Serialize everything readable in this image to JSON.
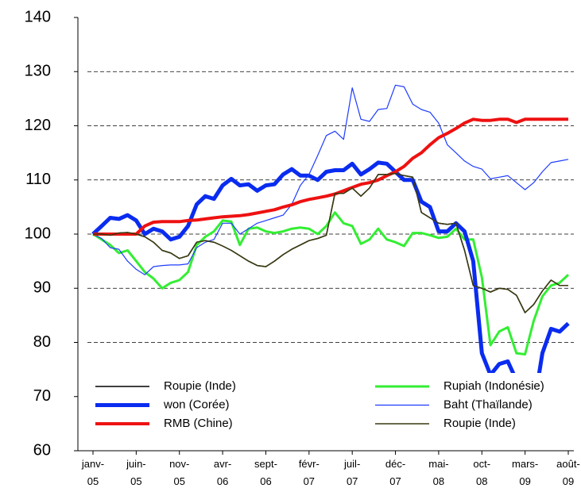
{
  "chart_data": {
    "type": "line",
    "categories": [
      "janv-05",
      null,
      null,
      null,
      null,
      "juin-05",
      null,
      null,
      null,
      null,
      "nov-05",
      null,
      null,
      null,
      null,
      "avr-06",
      null,
      null,
      null,
      null,
      "sept-06",
      null,
      null,
      null,
      null,
      "févr-07",
      null,
      null,
      null,
      null,
      "juil-07",
      null,
      null,
      null,
      null,
      "déc-07",
      null,
      null,
      null,
      null,
      "mai-08",
      null,
      null,
      null,
      null,
      "oct-08",
      null,
      null,
      null,
      null,
      "mars-09",
      null,
      null,
      null,
      null,
      "août-09"
    ],
    "ylim": [
      60,
      140
    ],
    "yticks": [
      60,
      70,
      80,
      90,
      100,
      110,
      120,
      130,
      140
    ],
    "grid": true,
    "series": [
      {
        "name": "Roupie (Inde)",
        "color": "#000000",
        "line_width": 1.5,
        "values": [
          100,
          100,
          99.8,
          100.2,
          100.3,
          100,
          99.5,
          98.5,
          97,
          96.5,
          95.5,
          96,
          98.5,
          98.8,
          98.5,
          97.8,
          97,
          96,
          95,
          94.2,
          94,
          95,
          96.2,
          97.2,
          98,
          98.8,
          99.2,
          99.8,
          107.5,
          107.5,
          108.5,
          107,
          108.5,
          111,
          111,
          111.2,
          110.8,
          110.5,
          104,
          103,
          102,
          101.8,
          102,
          97,
          90.5,
          90,
          89.3,
          90,
          89.8,
          88.7,
          85.5,
          87,
          89.5,
          91.5,
          90.5,
          90.5
        ]
      },
      {
        "name": "Rupiah (Indonésie)",
        "color": "#33ee33",
        "line_width": 3,
        "values": [
          100,
          99,
          98,
          96.5,
          97,
          95,
          93,
          91.8,
          90,
          91,
          91.5,
          93,
          98,
          99.5,
          100.5,
          102.5,
          102.3,
          98,
          101,
          101.2,
          100.5,
          100.2,
          100.5,
          101,
          101.2,
          101,
          100,
          101.5,
          104,
          102,
          101.5,
          98.2,
          99,
          101,
          99,
          98.5,
          97.8,
          100.2,
          100.2,
          99.8,
          99.3,
          99.5,
          101,
          99,
          99,
          92,
          79.5,
          82,
          82.8,
          78,
          77.8,
          84,
          88.5,
          90.5,
          91,
          92.5
        ]
      },
      {
        "name": "won (Corée)",
        "color": "#0a2cf0",
        "line_width": 5,
        "values": [
          100,
          101.5,
          103,
          102.8,
          103.5,
          102.5,
          100,
          101,
          100.5,
          99,
          99.5,
          101.5,
          105.5,
          107,
          106.5,
          109,
          110.2,
          109,
          109.2,
          108,
          109,
          109.2,
          111,
          112,
          110.8,
          110.8,
          110,
          111.5,
          111.8,
          111.8,
          113,
          111,
          112,
          113.2,
          113,
          111.5,
          110,
          110,
          106,
          105,
          100.5,
          100.5,
          102,
          100.5,
          95,
          78,
          74,
          76,
          76.5,
          73,
          68,
          68,
          78,
          82.5,
          82,
          83.5
        ]
      },
      {
        "name": "Baht (Thaïlande)",
        "color": "#1f3cff",
        "line_width": 1.2,
        "values": [
          100,
          99.2,
          97.5,
          97.2,
          95,
          93.5,
          92.5,
          94,
          94.2,
          94.3,
          94.3,
          94.5,
          97.5,
          98.5,
          99,
          102,
          102,
          100,
          101,
          102,
          102.5,
          103,
          103.5,
          105.5,
          109,
          111,
          114.5,
          118.2,
          119,
          117.5,
          127,
          121.2,
          120.8,
          123,
          123.2,
          127.5,
          127.2,
          124,
          123,
          122.5,
          120.5,
          116.5,
          115,
          113.5,
          112.5,
          112,
          110.2,
          110.5,
          110.8,
          109.5,
          108.2,
          109.5,
          111.5,
          113.2,
          113.5,
          113.8
        ]
      },
      {
        "name": "RMB (Chine)",
        "color": "#ee1111",
        "line_width": 4,
        "values": [
          100,
          100,
          100,
          100,
          100,
          100,
          101.5,
          102.2,
          102.3,
          102.3,
          102.3,
          102.5,
          102.6,
          102.8,
          103,
          103.2,
          103.3,
          103.4,
          103.6,
          103.9,
          104.2,
          104.5,
          105,
          105.4,
          106,
          106.4,
          106.7,
          107,
          107.4,
          108,
          108.6,
          109.2,
          109.5,
          110,
          110.8,
          111.5,
          112.5,
          114,
          115,
          116.5,
          117.8,
          118.6,
          119.5,
          120.5,
          121.2,
          121,
          121,
          121.2,
          121.2,
          120.6,
          121.2,
          121.2,
          121.2,
          121.2,
          121.2,
          121.2
        ]
      },
      {
        "name": "Roupie (Inde)",
        "color": "#3a3a10",
        "line_width": 1.5,
        "values": [
          100,
          100,
          99.8,
          100.2,
          100.3,
          100,
          99.5,
          98.5,
          97,
          96.5,
          95.5,
          96,
          98.5,
          98.8,
          98.5,
          97.8,
          97,
          96,
          95,
          94.2,
          94,
          95,
          96.2,
          97.2,
          98,
          98.8,
          99.2,
          99.8,
          107.5,
          107.5,
          108.5,
          107,
          108.5,
          111,
          111,
          111.2,
          110.8,
          110.5,
          104,
          103,
          102,
          101.8,
          102,
          97,
          90.5,
          90,
          89.3,
          90,
          89.8,
          88.7,
          85.5,
          87,
          89.5,
          91.5,
          90.5,
          90.5
        ]
      }
    ]
  }
}
